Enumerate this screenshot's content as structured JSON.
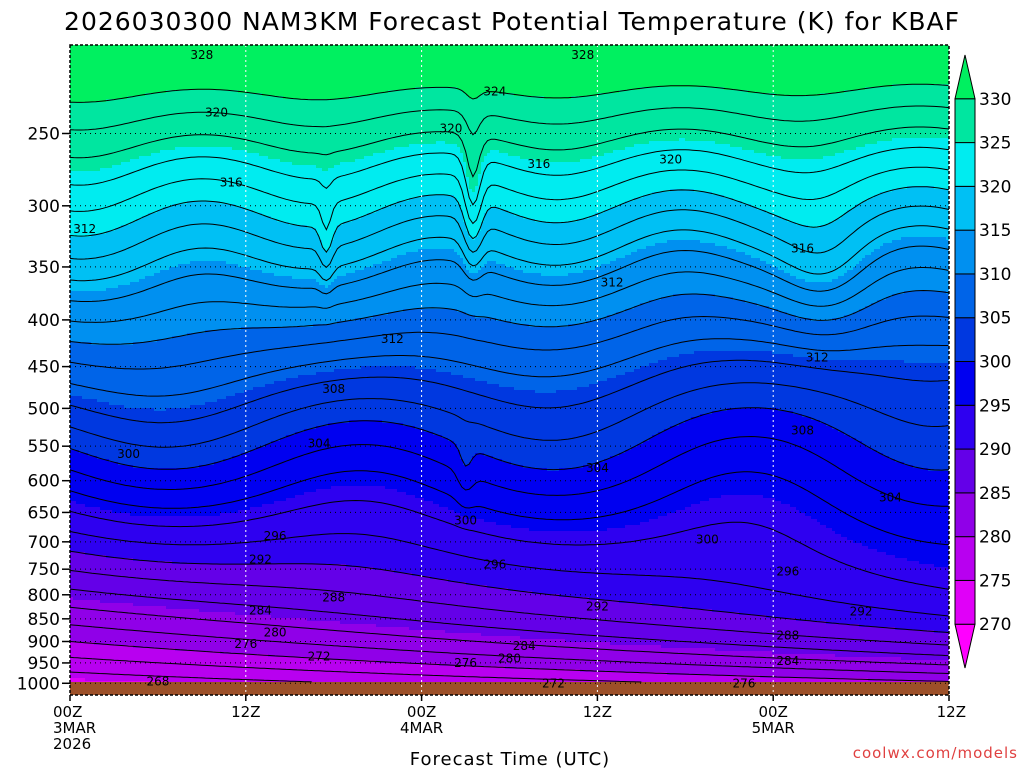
{
  "chart_data": {
    "type": "filled-contour time-height cross-section",
    "title": "2026030300 NAM3KM Forecast Potential Temperature (K) for KBAF",
    "xlabel": "Forecast Time (UTC)",
    "ylabel": "",
    "x_ticks": [
      {
        "hours": 0,
        "line1": "00Z",
        "line2": "3MAR",
        "line3": "2026"
      },
      {
        "hours": 12,
        "line1": "12Z",
        "line2": "",
        "line3": ""
      },
      {
        "hours": 24,
        "line1": "00Z",
        "line2": "4MAR",
        "line3": ""
      },
      {
        "hours": 36,
        "line1": "12Z",
        "line2": "",
        "line3": ""
      },
      {
        "hours": 48,
        "line1": "00Z",
        "line2": "5MAR",
        "line3": ""
      },
      {
        "hours": 60,
        "line1": "12Z",
        "line2": "",
        "line3": ""
      }
    ],
    "xlim": [
      0,
      60
    ],
    "y_ticks_hpa": [
      250,
      300,
      350,
      400,
      450,
      500,
      550,
      600,
      650,
      700,
      750,
      800,
      850,
      900,
      950,
      1000
    ],
    "ylim_hpa": [
      200,
      1030
    ],
    "colorbar": {
      "levels": [
        270,
        275,
        280,
        285,
        290,
        295,
        300,
        305,
        310,
        315,
        320,
        325,
        330
      ],
      "colors": [
        "#ff00ff",
        "#e000f8",
        "#b800f0",
        "#9000e8",
        "#6400e8",
        "#2e00f0",
        "#0000f0",
        "#0038e0",
        "#0064e8",
        "#0090f0",
        "#00c0f4",
        "#00ecf0",
        "#00e6a0",
        "#00f060"
      ]
    },
    "ground_color": "#9c5028",
    "contour_labels": [
      {
        "value": "328",
        "t": 9.0,
        "p": 205
      },
      {
        "value": "328",
        "t": 35.0,
        "p": 205
      },
      {
        "value": "324",
        "t": 29.0,
        "p": 225
      },
      {
        "value": "320",
        "t": 10.0,
        "p": 237
      },
      {
        "value": "320",
        "t": 26.0,
        "p": 247
      },
      {
        "value": "320",
        "t": 41.0,
        "p": 267
      },
      {
        "value": "316",
        "t": 11.0,
        "p": 283
      },
      {
        "value": "316",
        "t": 32.0,
        "p": 270
      },
      {
        "value": "316",
        "t": 50.0,
        "p": 334
      },
      {
        "value": "312",
        "t": 1.0,
        "p": 318
      },
      {
        "value": "312",
        "t": 37.0,
        "p": 364
      },
      {
        "value": "312",
        "t": 22.0,
        "p": 420
      },
      {
        "value": "312",
        "t": 51.0,
        "p": 440
      },
      {
        "value": "308",
        "t": 18.0,
        "p": 476
      },
      {
        "value": "308",
        "t": 50.0,
        "p": 529
      },
      {
        "value": "304",
        "t": 17.0,
        "p": 546
      },
      {
        "value": "304",
        "t": 36.0,
        "p": 581
      },
      {
        "value": "304",
        "t": 56.0,
        "p": 626
      },
      {
        "value": "300",
        "t": 4.0,
        "p": 561
      },
      {
        "value": "300",
        "t": 27.0,
        "p": 663
      },
      {
        "value": "300",
        "t": 43.5,
        "p": 696
      },
      {
        "value": "296",
        "t": 14.0,
        "p": 690
      },
      {
        "value": "296",
        "t": 29.0,
        "p": 741
      },
      {
        "value": "296",
        "t": 49.0,
        "p": 754
      },
      {
        "value": "292",
        "t": 13.0,
        "p": 732
      },
      {
        "value": "292",
        "t": 36.0,
        "p": 824
      },
      {
        "value": "292",
        "t": 54.0,
        "p": 834
      },
      {
        "value": "288",
        "t": 18.0,
        "p": 806
      },
      {
        "value": "288",
        "t": 49.0,
        "p": 887
      },
      {
        "value": "284",
        "t": 13.0,
        "p": 832
      },
      {
        "value": "284",
        "t": 31.0,
        "p": 910
      },
      {
        "value": "284",
        "t": 49.0,
        "p": 945
      },
      {
        "value": "280",
        "t": 14.0,
        "p": 880
      },
      {
        "value": "280",
        "t": 30.0,
        "p": 940
      },
      {
        "value": "276",
        "t": 12.0,
        "p": 906
      },
      {
        "value": "276",
        "t": 27.0,
        "p": 950
      },
      {
        "value": "276",
        "t": 46.0,
        "p": 1000
      },
      {
        "value": "272",
        "t": 17.0,
        "p": 935
      },
      {
        "value": "272",
        "t": 33.0,
        "p": 1000
      },
      {
        "value": "268",
        "t": 6.0,
        "p": 995
      }
    ],
    "isotherms_K": [
      268,
      270,
      272,
      274,
      276,
      278,
      280,
      282,
      284,
      286,
      288,
      290,
      292,
      294,
      296,
      298,
      300,
      302,
      304,
      306,
      308,
      310,
      312,
      314,
      316,
      318,
      320,
      322,
      324,
      326,
      328,
      330
    ]
  },
  "credit": {
    "text": "coolwx.com/models",
    "color": "#e04040"
  }
}
